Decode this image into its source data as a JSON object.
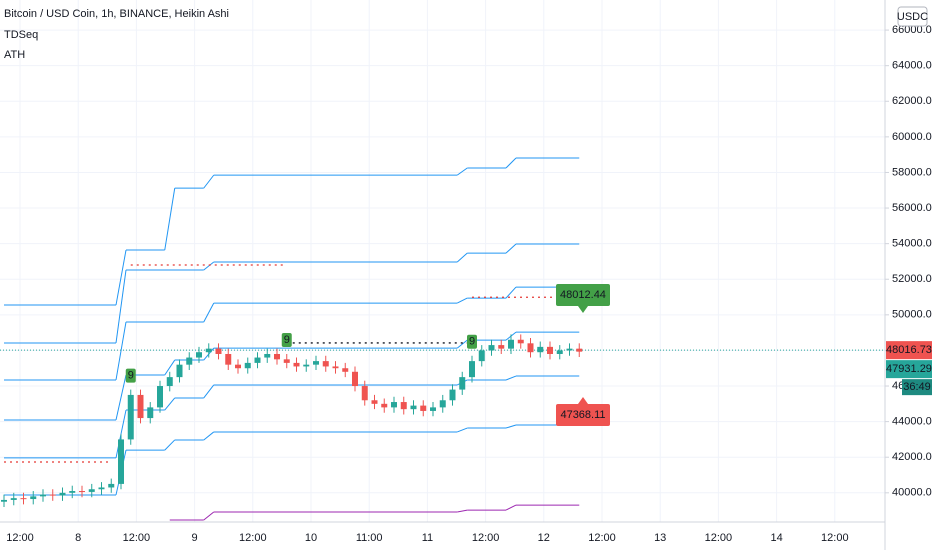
{
  "chart_data": {
    "type": "candlestick",
    "title": "Bitcoin / USD Coin, 1h, BINANCE, Heikin Ashi",
    "indicators": [
      "TDSeq",
      "ATH"
    ],
    "currency": "USDC",
    "categories": [
      "12:00",
      "8",
      "12:00",
      "9",
      "12:00",
      "10",
      "11:00",
      "11",
      "12:00",
      "12",
      "12:00",
      "13",
      "12:00",
      "14",
      "12:00"
    ],
    "ylim": [
      38360,
      67690
    ],
    "yticks": [
      {
        "value": 40000,
        "label": "40000.00"
      },
      {
        "value": 42000,
        "label": "42000.00"
      },
      {
        "value": 44000,
        "label": "44000.00"
      },
      {
        "value": 46000,
        "label": "46000.00"
      },
      {
        "value": 48000,
        "label": "48000.00"
      },
      {
        "value": 50000,
        "label": "50000.00"
      },
      {
        "value": 52000,
        "label": "52000.00"
      },
      {
        "value": 54000,
        "label": "54000.00"
      },
      {
        "value": 56000,
        "label": "56000.00"
      },
      {
        "value": 58000,
        "label": "58000.00"
      },
      {
        "value": 60000,
        "label": "60000.00"
      },
      {
        "value": 62000,
        "label": "62000.00"
      },
      {
        "value": 64000,
        "label": "64000.00"
      },
      {
        "value": 66000,
        "label": "66000.00"
      }
    ],
    "grid": true,
    "up_color": "#26a69a",
    "down_color": "#ef5350",
    "candles": {
      "open": [
        39500,
        39600,
        39700,
        39650,
        39800,
        39900,
        39850,
        40000,
        40100,
        40050,
        40200,
        40300,
        40500,
        43000,
        45500,
        44200,
        44800,
        46000,
        46500,
        47200,
        47600,
        47900,
        48100,
        47800,
        47200,
        47000,
        47300,
        47600,
        47800,
        47500,
        47300,
        47100,
        47200,
        47400,
        47100,
        47000,
        46800,
        46000,
        45200,
        45000,
        44800,
        45100,
        44700,
        44900,
        44600,
        44800,
        45200,
        45800,
        46500,
        47400,
        48000,
        48300,
        48100,
        48600,
        48400,
        47900,
        48200,
        47800,
        48000,
        48100
      ],
      "close": [
        39600,
        39700,
        39650,
        39800,
        39900,
        39850,
        40000,
        40100,
        40050,
        40200,
        40300,
        40500,
        43000,
        45500,
        44200,
        44800,
        46000,
        46500,
        47200,
        47600,
        47900,
        48100,
        47800,
        47200,
        47000,
        47300,
        47600,
        47800,
        47500,
        47300,
        47100,
        47200,
        47400,
        47100,
        47000,
        46800,
        46000,
        45200,
        45000,
        44800,
        45100,
        44700,
        44900,
        44600,
        44800,
        45200,
        45800,
        46500,
        47400,
        48000,
        48300,
        48100,
        48600,
        48400,
        47900,
        48200,
        47800,
        48000,
        48100,
        47931
      ],
      "high": [
        39900,
        40000,
        40000,
        40100,
        40200,
        40200,
        40300,
        40400,
        40400,
        40500,
        40600,
        40800,
        43300,
        45800,
        45800,
        45100,
        46300,
        46800,
        47500,
        47900,
        48200,
        48400,
        48400,
        48100,
        47500,
        47600,
        47900,
        48100,
        48100,
        47800,
        47600,
        47500,
        47700,
        47700,
        47400,
        47300,
        47100,
        46300,
        45500,
        45300,
        45400,
        45400,
        45200,
        45200,
        45100,
        45500,
        46100,
        46800,
        47700,
        48300,
        48600,
        48600,
        48900,
        48900,
        48700,
        48500,
        48500,
        48300,
        48400,
        48400
      ],
      "low": [
        39200,
        39300,
        39350,
        39350,
        39500,
        39550,
        39550,
        39700,
        39750,
        39750,
        39900,
        40000,
        40200,
        42700,
        43900,
        43900,
        44500,
        45700,
        46200,
        46900,
        47300,
        47600,
        47500,
        46900,
        46700,
        46700,
        47000,
        47300,
        47200,
        47000,
        46800,
        46800,
        46900,
        46800,
        46700,
        46500,
        45700,
        44900,
        44700,
        44500,
        44500,
        44400,
        44400,
        44300,
        44300,
        44500,
        44900,
        45500,
        46200,
        47100,
        47700,
        47800,
        47800,
        48100,
        47600,
        47600,
        47500,
        47500,
        47700,
        47631
      ]
    },
    "series": [
      {
        "color": "#2196f3",
        "x": [
          0,
          12,
          17,
          21,
          47,
          52
        ],
        "values": [
          50550,
          53640,
          57120,
          57850,
          58250,
          58810
        ]
      },
      {
        "color": "#2196f3",
        "x": [
          0,
          12,
          21,
          47,
          52
        ],
        "values": [
          48420,
          52520,
          52970,
          53470,
          53980
        ]
      },
      {
        "color": "#2196f3",
        "x": [
          0,
          12,
          21,
          47,
          52
        ],
        "values": [
          46340,
          49600,
          50660,
          50940,
          51560
        ]
      },
      {
        "color": "#2196f3",
        "x": [
          0,
          12,
          17,
          21,
          47,
          52
        ],
        "values": [
          44090,
          46620,
          47460,
          48130,
          48580,
          49030
        ]
      },
      {
        "color": "#2196f3",
        "x": [
          0,
          12,
          17,
          21,
          47,
          52
        ],
        "values": [
          41960,
          44650,
          45330,
          46060,
          46340,
          46560
        ]
      },
      {
        "color": "#2196f3",
        "x": [
          0,
          12,
          17,
          21,
          47,
          52
        ],
        "values": [
          39880,
          42400,
          42970,
          43420,
          43640,
          43810
        ]
      },
      {
        "color": "#9c27b0",
        "x": [
          17,
          21,
          47,
          52
        ],
        "values": [
          38470,
          38920,
          39030,
          39310
        ]
      }
    ],
    "levels": [
      {
        "color": "#e53935",
        "x": [
          13,
          29
        ],
        "value": 52800
      },
      {
        "color": "#e53935",
        "x": [
          0,
          11
        ],
        "value": 41730
      },
      {
        "color": "#e53935",
        "x": [
          48,
          57
        ],
        "value": 50990
      },
      {
        "color": "#131722",
        "x": [
          29,
          48
        ],
        "value": 48420
      }
    ],
    "td_markers": {
      "x": [
        13,
        29,
        48
      ],
      "labels": [
        "9",
        "9",
        "9"
      ]
    },
    "last_price": 48016.73,
    "close_price": 47931.29,
    "countdown": "36:49",
    "annotations": [
      "48012.44",
      "47368.11"
    ]
  }
}
